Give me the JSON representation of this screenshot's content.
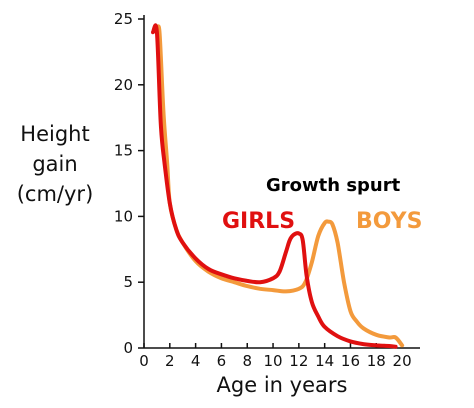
{
  "chart_data": {
    "type": "line",
    "title": "",
    "xlabel": "Age in years",
    "ylabel_lines": [
      "Height",
      "gain",
      "(cm/yr)"
    ],
    "x_ticks": [
      0,
      2,
      4,
      6,
      8,
      10,
      12,
      14,
      16,
      18,
      20
    ],
    "y_ticks": [
      0,
      5,
      10,
      15,
      20,
      25
    ],
    "xlim": [
      0,
      21
    ],
    "ylim": [
      0,
      25
    ],
    "annotation": "Growth spurt",
    "series": [
      {
        "name": "GIRLS",
        "color": "#e01010",
        "x": [
          0.7,
          1.0,
          1.3,
          1.6,
          2.0,
          2.5,
          3.0,
          4.0,
          5.0,
          6.0,
          7.0,
          8.0,
          9.0,
          10.0,
          10.5,
          11.0,
          11.3,
          11.6,
          12.0,
          12.3,
          12.6,
          13.0,
          13.5,
          14.0,
          15.0,
          16.0,
          17.0,
          18.0,
          19.0,
          19.5
        ],
        "y": [
          24.0,
          24.0,
          17.0,
          14.0,
          11.0,
          9.0,
          8.0,
          6.8,
          6.0,
          5.6,
          5.3,
          5.1,
          5.0,
          5.3,
          5.8,
          7.3,
          8.2,
          8.6,
          8.7,
          8.2,
          5.5,
          3.5,
          2.4,
          1.6,
          0.9,
          0.5,
          0.3,
          0.2,
          0.15,
          0.1
        ]
      },
      {
        "name": "BOYS",
        "color": "#f39a3c",
        "x": [
          1.0,
          1.2,
          1.5,
          1.8,
          2.0,
          2.5,
          3.0,
          4.0,
          5.0,
          6.0,
          7.0,
          8.0,
          9.0,
          10.0,
          11.0,
          12.0,
          12.5,
          13.0,
          13.5,
          14.0,
          14.3,
          14.6,
          15.0,
          15.5,
          16.0,
          16.5,
          17.0,
          18.0,
          19.0,
          19.5,
          20.0
        ],
        "y": [
          24.0,
          24.0,
          18.0,
          14.0,
          11.0,
          9.0,
          8.0,
          6.6,
          5.8,
          5.3,
          5.0,
          4.7,
          4.5,
          4.4,
          4.3,
          4.5,
          5.0,
          6.5,
          8.5,
          9.5,
          9.6,
          9.4,
          8.0,
          5.0,
          2.8,
          2.0,
          1.5,
          1.0,
          0.8,
          0.8,
          0.2
        ]
      }
    ]
  }
}
